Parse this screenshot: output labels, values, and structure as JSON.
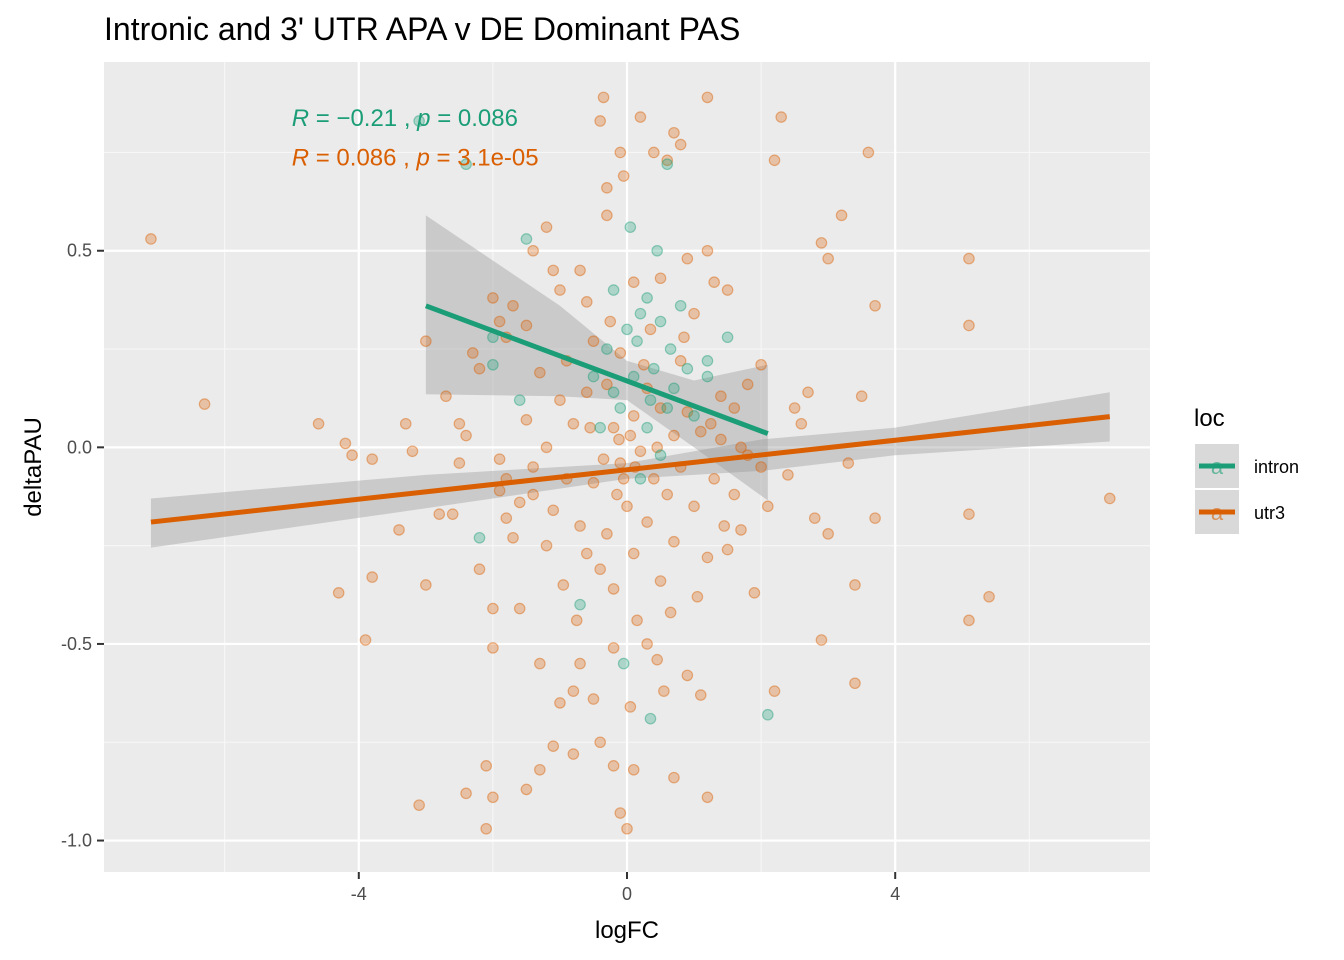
{
  "chart_data": {
    "type": "scatter",
    "title": "Intronic and 3' UTR APA v DE Dominant PAS",
    "xlabel": "logFC",
    "ylabel": "deltaPAU",
    "xlim": [
      -7.8,
      7.8
    ],
    "ylim": [
      -1.08,
      0.98
    ],
    "x_ticks": [
      -4,
      0,
      4
    ],
    "x_tick_labels": [
      "-4",
      "0",
      "4"
    ],
    "y_ticks": [
      -1.0,
      -0.5,
      0.0,
      0.5
    ],
    "y_tick_labels": [
      "-1.0",
      "-0.5",
      "0.0",
      "0.5"
    ],
    "grid": true,
    "legend": {
      "title": "loc",
      "position": "right",
      "glyph": "a",
      "entries": [
        {
          "label": "intron",
          "color": "#1b9e77"
        },
        {
          "label": "utr3",
          "color": "#d95f02"
        }
      ]
    },
    "annotations": [
      {
        "series": "intron",
        "color": "#1b9e77",
        "parts": [
          "R",
          " = −0.21 , ",
          "p",
          " = 0.086"
        ],
        "x": -5.0,
        "y": 0.84
      },
      {
        "series": "utr3",
        "color": "#d95f02",
        "parts": [
          "R",
          " = 0.086 , ",
          "p",
          " = 3.1e-05"
        ],
        "x": -5.0,
        "y": 0.74
      }
    ],
    "series": [
      {
        "name": "intron",
        "color": "#1b9e77",
        "fit": {
          "x": [
            -3.0,
            2.1
          ],
          "y": [
            0.36,
            0.035
          ]
        },
        "ci": {
          "x": [
            -3.0,
            -1.0,
            0.0,
            1.0,
            2.1
          ],
          "upper": [
            0.59,
            0.36,
            0.22,
            0.17,
            0.21
          ],
          "lower": [
            0.135,
            0.13,
            0.12,
            0.0,
            -0.135
          ]
        },
        "points": [
          [
            -3.1,
            0.83
          ],
          [
            -2.4,
            0.72
          ],
          [
            0.6,
            0.72
          ],
          [
            -1.5,
            0.53
          ],
          [
            0.05,
            0.56
          ],
          [
            0.45,
            0.5
          ],
          [
            -2.0,
            0.28
          ],
          [
            -2.0,
            0.21
          ],
          [
            -1.6,
            0.12
          ],
          [
            -2.2,
            -0.23
          ],
          [
            -0.7,
            -0.4
          ],
          [
            -0.05,
            -0.55
          ],
          [
            0.35,
            -0.69
          ],
          [
            2.1,
            -0.68
          ],
          [
            1.5,
            0.28
          ],
          [
            1.2,
            0.22
          ],
          [
            1.2,
            0.18
          ],
          [
            0.3,
            0.38
          ],
          [
            0.2,
            0.34
          ],
          [
            0.0,
            0.3
          ],
          [
            -0.2,
            0.4
          ],
          [
            0.5,
            0.32
          ],
          [
            0.8,
            0.36
          ],
          [
            -0.3,
            0.25
          ],
          [
            0.4,
            0.2
          ],
          [
            0.7,
            0.15
          ],
          [
            0.1,
            0.18
          ],
          [
            -0.1,
            0.1
          ],
          [
            0.3,
            0.05
          ],
          [
            0.6,
            0.1
          ],
          [
            -0.4,
            0.05
          ],
          [
            0.5,
            -0.02
          ],
          [
            0.2,
            -0.08
          ],
          [
            -0.2,
            0.14
          ],
          [
            0.9,
            0.2
          ],
          [
            1.0,
            0.08
          ],
          [
            -0.5,
            0.18
          ],
          [
            0.15,
            0.27
          ],
          [
            0.35,
            0.12
          ],
          [
            0.65,
            0.25
          ]
        ]
      },
      {
        "name": "utr3",
        "color": "#d95f02",
        "fit": {
          "x": [
            -7.1,
            7.2
          ],
          "y": [
            -0.19,
            0.078
          ]
        },
        "ci": {
          "x": [
            -7.1,
            -3.0,
            0.0,
            2.0,
            4.0,
            7.2
          ],
          "upper": [
            -0.13,
            -0.07,
            -0.04,
            0.02,
            0.05,
            0.14
          ],
          "lower": [
            -0.255,
            -0.155,
            -0.08,
            -0.06,
            -0.02,
            0.015
          ]
        },
        "points": [
          [
            -7.1,
            0.53
          ],
          [
            -6.3,
            0.11
          ],
          [
            -4.6,
            0.06
          ],
          [
            -4.2,
            0.01
          ],
          [
            -4.1,
            -0.02
          ],
          [
            -3.9,
            -0.49
          ],
          [
            -3.8,
            -0.33
          ],
          [
            -3.8,
            -0.03
          ],
          [
            -4.3,
            -0.37
          ],
          [
            -3.3,
            0.06
          ],
          [
            -3.4,
            -0.21
          ],
          [
            -3.2,
            -0.01
          ],
          [
            -3.1,
            -0.91
          ],
          [
            -3.0,
            0.27
          ],
          [
            -3.0,
            -0.35
          ],
          [
            -2.8,
            -0.17
          ],
          [
            -2.6,
            -0.17
          ],
          [
            -2.7,
            0.13
          ],
          [
            -2.5,
            0.06
          ],
          [
            -2.5,
            -0.04
          ],
          [
            -2.4,
            0.03
          ],
          [
            -2.4,
            -0.88
          ],
          [
            -2.3,
            0.24
          ],
          [
            -2.2,
            0.2
          ],
          [
            -2.2,
            -0.31
          ],
          [
            -2.1,
            -0.81
          ],
          [
            -2.1,
            -0.97
          ],
          [
            -2.0,
            0.38
          ],
          [
            -2.0,
            -0.41
          ],
          [
            -2.0,
            -0.51
          ],
          [
            -2.0,
            -0.89
          ],
          [
            -1.9,
            0.32
          ],
          [
            -1.9,
            -0.03
          ],
          [
            -1.9,
            -0.11
          ],
          [
            -1.8,
            0.28
          ],
          [
            -1.8,
            -0.18
          ],
          [
            -1.7,
            0.36
          ],
          [
            -1.7,
            -0.23
          ],
          [
            -1.6,
            -0.41
          ],
          [
            -1.5,
            0.31
          ],
          [
            -1.5,
            -0.87
          ],
          [
            -1.4,
            0.5
          ],
          [
            -1.4,
            -0.12
          ],
          [
            -1.3,
            -0.55
          ],
          [
            -1.3,
            -0.82
          ],
          [
            -1.2,
            0.56
          ],
          [
            -1.2,
            -0.25
          ],
          [
            -1.1,
            0.45
          ],
          [
            -1.1,
            -0.76
          ],
          [
            -1.0,
            0.4
          ],
          [
            -1.0,
            -0.65
          ],
          [
            -0.9,
            -0.08
          ],
          [
            -0.8,
            -0.62
          ],
          [
            -0.8,
            -0.78
          ],
          [
            -0.7,
            0.45
          ],
          [
            -0.7,
            -0.55
          ],
          [
            -0.6,
            0.37
          ],
          [
            -0.5,
            -0.64
          ],
          [
            -0.4,
            0.83
          ],
          [
            -0.4,
            -0.75
          ],
          [
            -0.35,
            0.89
          ],
          [
            -0.3,
            0.66
          ],
          [
            -0.3,
            0.59
          ],
          [
            -0.2,
            -0.51
          ],
          [
            -0.2,
            -0.81
          ],
          [
            -0.1,
            0.75
          ],
          [
            -0.05,
            0.69
          ],
          [
            -0.1,
            -0.93
          ],
          [
            0.0,
            -0.97
          ],
          [
            0.05,
            -0.66
          ],
          [
            0.1,
            0.42
          ],
          [
            0.1,
            -0.82
          ],
          [
            0.2,
            0.84
          ],
          [
            0.3,
            -0.5
          ],
          [
            0.4,
            0.75
          ],
          [
            0.45,
            -0.54
          ],
          [
            0.5,
            0.43
          ],
          [
            0.55,
            -0.62
          ],
          [
            0.6,
            0.73
          ],
          [
            0.7,
            0.8
          ],
          [
            0.7,
            -0.84
          ],
          [
            0.8,
            0.77
          ],
          [
            0.8,
            0.22
          ],
          [
            0.9,
            0.48
          ],
          [
            0.9,
            -0.58
          ],
          [
            1.0,
            0.34
          ],
          [
            1.1,
            -0.63
          ],
          [
            1.2,
            0.89
          ],
          [
            1.2,
            0.5
          ],
          [
            1.2,
            -0.89
          ],
          [
            1.3,
            0.42
          ],
          [
            1.4,
            0.13
          ],
          [
            1.5,
            -0.26
          ],
          [
            1.5,
            0.4
          ],
          [
            1.6,
            0.1
          ],
          [
            1.7,
            -0.21
          ],
          [
            1.8,
            0.16
          ],
          [
            1.9,
            -0.37
          ],
          [
            2.0,
            0.21
          ],
          [
            2.0,
            -0.05
          ],
          [
            2.1,
            -0.15
          ],
          [
            2.2,
            -0.62
          ],
          [
            2.2,
            0.73
          ],
          [
            2.3,
            0.84
          ],
          [
            2.4,
            -0.07
          ],
          [
            2.5,
            0.1
          ],
          [
            2.6,
            0.06
          ],
          [
            2.7,
            0.14
          ],
          [
            2.8,
            -0.18
          ],
          [
            2.9,
            -0.49
          ],
          [
            2.9,
            0.52
          ],
          [
            3.0,
            0.48
          ],
          [
            3.0,
            -0.22
          ],
          [
            3.2,
            0.59
          ],
          [
            3.3,
            -0.04
          ],
          [
            3.4,
            -0.6
          ],
          [
            3.4,
            -0.35
          ],
          [
            3.5,
            0.13
          ],
          [
            3.6,
            0.75
          ],
          [
            3.7,
            -0.18
          ],
          [
            3.7,
            0.36
          ],
          [
            5.1,
            0.48
          ],
          [
            5.1,
            0.31
          ],
          [
            5.1,
            -0.17
          ],
          [
            5.1,
            -0.44
          ],
          [
            5.4,
            -0.38
          ],
          [
            7.2,
            -0.13
          ],
          [
            -1.5,
            0.07
          ],
          [
            -1.2,
            0.0
          ],
          [
            -1.4,
            -0.05
          ],
          [
            -1.1,
            -0.16
          ],
          [
            -1.0,
            0.12
          ],
          [
            -0.9,
            0.22
          ],
          [
            -0.8,
            0.06
          ],
          [
            -0.7,
            -0.2
          ],
          [
            -0.6,
            0.14
          ],
          [
            -0.5,
            -0.09
          ],
          [
            -0.5,
            0.27
          ],
          [
            -0.4,
            -0.31
          ],
          [
            -0.3,
            0.16
          ],
          [
            -0.3,
            -0.22
          ],
          [
            -0.2,
            0.05
          ],
          [
            -0.2,
            -0.36
          ],
          [
            -0.1,
            -0.04
          ],
          [
            -0.1,
            0.24
          ],
          [
            0.0,
            -0.15
          ],
          [
            0.1,
            0.08
          ],
          [
            0.1,
            -0.27
          ],
          [
            0.2,
            -0.01
          ],
          [
            0.3,
            0.15
          ],
          [
            0.3,
            -0.19
          ],
          [
            0.4,
            -0.08
          ],
          [
            0.5,
            0.1
          ],
          [
            0.5,
            -0.34
          ],
          [
            0.6,
            -0.12
          ],
          [
            0.7,
            0.03
          ],
          [
            0.7,
            -0.24
          ],
          [
            0.8,
            -0.05
          ],
          [
            0.9,
            0.09
          ],
          [
            1.0,
            -0.15
          ],
          [
            1.1,
            0.04
          ],
          [
            1.2,
            -0.28
          ],
          [
            1.3,
            -0.08
          ],
          [
            1.4,
            0.02
          ],
          [
            1.6,
            -0.12
          ],
          [
            1.8,
            -0.02
          ],
          [
            -1.6,
            -0.14
          ],
          [
            -0.95,
            -0.35
          ],
          [
            -0.75,
            -0.44
          ],
          [
            -0.55,
            0.05
          ],
          [
            -0.25,
            0.32
          ],
          [
            0.15,
            -0.44
          ],
          [
            0.35,
            0.3
          ],
          [
            0.65,
            -0.42
          ],
          [
            0.85,
            0.28
          ],
          [
            1.05,
            -0.38
          ],
          [
            1.25,
            0.06
          ],
          [
            1.45,
            -0.2
          ],
          [
            -1.3,
            0.19
          ],
          [
            -1.8,
            -0.08
          ],
          [
            1.7,
            0.0
          ],
          [
            -0.6,
            -0.27
          ],
          [
            0.25,
            0.21
          ],
          [
            -0.15,
            -0.12
          ],
          [
            0.45,
            0.0
          ],
          [
            -0.35,
            -0.03
          ],
          [
            0.05,
            0.03
          ],
          [
            -0.05,
            -0.08
          ],
          [
            0.12,
            -0.05
          ],
          [
            -0.12,
            0.02
          ]
        ]
      }
    ]
  }
}
